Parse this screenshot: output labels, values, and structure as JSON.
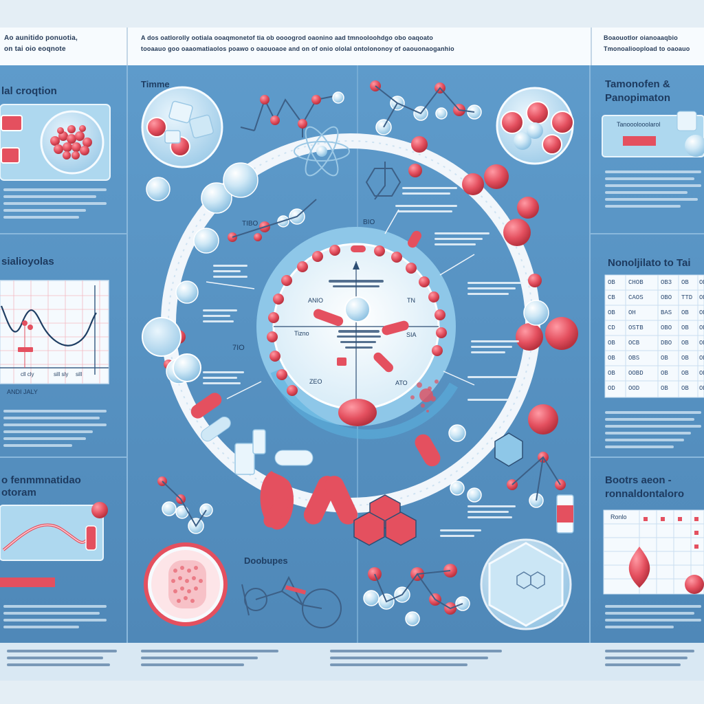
{
  "header": {
    "left_line1": "Ao aunitido ponuotia,",
    "left_line2": "on tai oio eoqnote",
    "center_line1": "A dos oatlorolly ootiala ooaqmonetof tia ob oooogrod oaonino aad tmnooloohdgo obo oaqoato",
    "center_line2": "tooaauo goo oaaomatiaolos poawo o oaouoaoe and on of onio ololal ontolononoy of oaouonaoganhio",
    "right_line1": "Boaouotlor oianoaaqbio",
    "right_line2": "Tmonoalioopload to oaoauo"
  },
  "left_panel": {
    "title1": "lal croqtion",
    "title2": "sialioyolas",
    "chart_labels": [
      "cll cly",
      "sill sly",
      "sill",
      "ANDI JALY"
    ],
    "title3_line1": "o fenmmnatidao",
    "title3_line2": "otoram"
  },
  "center": {
    "timeline_label": "Timme",
    "ring_labels": [
      "BIO",
      "TIBO",
      "ANIO",
      "TN",
      "7IO",
      "Tizno",
      "SIA",
      "ZEO",
      "ATO"
    ],
    "bottom_label": "Doobupes"
  },
  "right_panel": {
    "title1_line1": "Tamonofen &",
    "title1_line2": "Panopimaton",
    "card_text": "Tanooolooolarol",
    "title2": "Nonoljilato to Tai",
    "table_rows": [
      [
        "OB",
        "CHOB",
        "OB3",
        "OB",
        "OB"
      ],
      [
        "CB",
        "CAOS",
        "OBO",
        "TTD",
        "OB"
      ],
      [
        "OB",
        "OH",
        "BAS",
        "OB",
        "OB"
      ],
      [
        "CD",
        "OSTB",
        "OBO",
        "OB",
        "OB"
      ],
      [
        "OB",
        "OCB",
        "DBO",
        "OB",
        "OB"
      ],
      [
        "OB",
        "OBS",
        "OB",
        "OB",
        "OB"
      ],
      [
        "OB",
        "OOBD",
        "OB",
        "OB",
        "OB"
      ],
      [
        "OD",
        "OOD",
        "OB",
        "OB",
        "OB"
      ]
    ],
    "title3_line1": "Bootrs aeon -",
    "title3_line2": "ronnaldontaloro",
    "table2_header": "Ronlo"
  },
  "colors": {
    "background": "#e4eef5",
    "panel_blue": "#5c97c7",
    "ring_white": "#f1f6fb",
    "accent_red": "#e4505f",
    "molecule_light": "#b9dcef"
  }
}
